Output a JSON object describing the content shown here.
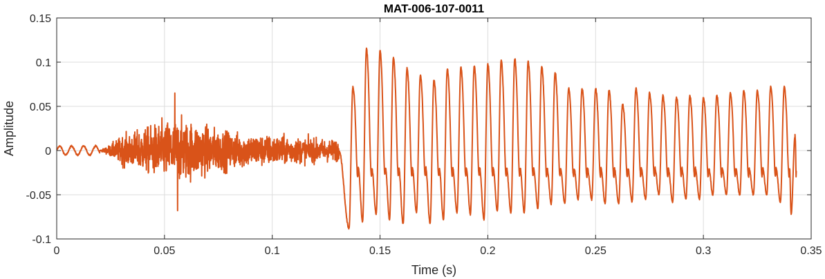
{
  "chart_data": {
    "type": "line",
    "title": "MAT-006-107-0011",
    "xlabel": "Time (s)",
    "ylabel": "Amplitude",
    "xlim": [
      0,
      0.35
    ],
    "ylim": [
      -0.1,
      0.15
    ],
    "xticks": [
      0,
      0.05,
      0.1,
      0.15,
      0.2,
      0.25,
      0.3,
      0.35
    ],
    "xtick_labels": [
      "0",
      "0.05",
      "0.1",
      "0.15",
      "0.2",
      "0.25",
      "0.3",
      "0.35"
    ],
    "yticks": [
      -0.1,
      -0.05,
      0,
      0.05,
      0.1,
      0.15
    ],
    "ytick_labels": [
      "-0.1",
      "-0.05",
      "0",
      "0.05",
      "0.1",
      "0.15"
    ],
    "grid": true,
    "line_color": "#D95319",
    "segments": [
      {
        "description": "low-level onset",
        "x_range": [
          0.0,
          0.02
        ],
        "envelope": 0.006
      },
      {
        "description": "noisy fricative burst",
        "x_range": [
          0.02,
          0.13
        ],
        "peak_envelope_max": 0.065,
        "peak_envelope_min": -0.068,
        "peak_time": 0.055
      },
      {
        "description": "voiced periodic segment",
        "x_range": [
          0.13,
          0.343
        ],
        "period": 0.00625
      }
    ],
    "voiced_peaks": [
      {
        "x": 0.1374,
        "max": 0.072,
        "min": -0.088
      },
      {
        "x": 0.1437,
        "max": 0.115,
        "min": -0.08
      },
      {
        "x": 0.15,
        "max": 0.113,
        "min": -0.072
      },
      {
        "x": 0.1562,
        "max": 0.105,
        "min": -0.078
      },
      {
        "x": 0.1625,
        "max": 0.093,
        "min": -0.083
      },
      {
        "x": 0.1687,
        "max": 0.085,
        "min": -0.07
      },
      {
        "x": 0.175,
        "max": 0.08,
        "min": -0.082
      },
      {
        "x": 0.1812,
        "max": 0.092,
        "min": -0.078
      },
      {
        "x": 0.1875,
        "max": 0.094,
        "min": -0.07
      },
      {
        "x": 0.1937,
        "max": 0.096,
        "min": -0.072
      },
      {
        "x": 0.2,
        "max": 0.098,
        "min": -0.078
      },
      {
        "x": 0.2062,
        "max": 0.102,
        "min": -0.068
      },
      {
        "x": 0.2125,
        "max": 0.104,
        "min": -0.07
      },
      {
        "x": 0.2187,
        "max": 0.101,
        "min": -0.07
      },
      {
        "x": 0.225,
        "max": 0.095,
        "min": -0.065
      },
      {
        "x": 0.2312,
        "max": 0.088,
        "min": -0.06
      },
      {
        "x": 0.2375,
        "max": 0.07,
        "min": -0.06
      },
      {
        "x": 0.2437,
        "max": 0.07,
        "min": -0.055
      },
      {
        "x": 0.25,
        "max": 0.07,
        "min": -0.055
      },
      {
        "x": 0.2562,
        "max": 0.068,
        "min": -0.06
      },
      {
        "x": 0.2625,
        "max": 0.052,
        "min": -0.06
      },
      {
        "x": 0.2687,
        "max": 0.07,
        "min": -0.058
      },
      {
        "x": 0.275,
        "max": 0.065,
        "min": -0.055
      },
      {
        "x": 0.2812,
        "max": 0.062,
        "min": -0.05
      },
      {
        "x": 0.2875,
        "max": 0.06,
        "min": -0.058
      },
      {
        "x": 0.2937,
        "max": 0.062,
        "min": -0.055
      },
      {
        "x": 0.3,
        "max": 0.06,
        "min": -0.055
      },
      {
        "x": 0.3062,
        "max": 0.062,
        "min": -0.05
      },
      {
        "x": 0.3125,
        "max": 0.065,
        "min": -0.05
      },
      {
        "x": 0.3187,
        "max": 0.068,
        "min": -0.05
      },
      {
        "x": 0.325,
        "max": 0.068,
        "min": -0.05
      },
      {
        "x": 0.3312,
        "max": 0.072,
        "min": -0.05
      },
      {
        "x": 0.3375,
        "max": 0.072,
        "min": -0.058
      },
      {
        "x": 0.3425,
        "max": 0.016,
        "min": -0.072
      }
    ]
  }
}
